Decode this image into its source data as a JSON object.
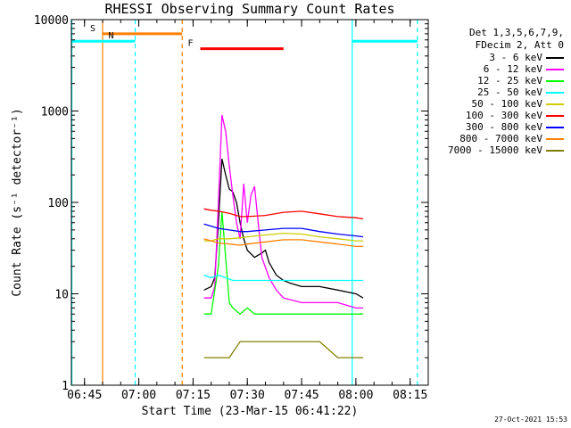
{
  "chart_data": {
    "type": "line",
    "title": "RHESSI Observing Summary Count Rates",
    "xlabel": "Start Time (23-Mar-15 06:41:22)",
    "ylabel": "Count Rate (s⁻¹ detector⁻¹)",
    "y_scale": "log",
    "ylim": [
      1,
      10000
    ],
    "xlim": [
      "06:41:22",
      "08:20:00"
    ],
    "x_ticks": [
      "06:45",
      "07:00",
      "07:15",
      "07:30",
      "07:45",
      "08:00",
      "08:15"
    ],
    "y_ticks": [
      "1",
      "10",
      "100",
      "1000",
      "10000"
    ],
    "legend_header": [
      "Det 1,3,5,6,7,9,",
      "FDecim 2, Att 0"
    ],
    "grid": false,
    "legend_position": "outside-right",
    "series": [
      {
        "name": "3 - 6 keV",
        "color": "#000000",
        "points": [
          [
            "07:18",
            11
          ],
          [
            "07:20",
            12
          ],
          [
            "07:21",
            15
          ],
          [
            "07:22",
            60
          ],
          [
            "07:23",
            300
          ],
          [
            "07:24",
            200
          ],
          [
            "07:25",
            140
          ],
          [
            "07:26",
            130
          ],
          [
            "07:27",
            100
          ],
          [
            "07:28",
            60
          ],
          [
            "07:29",
            40
          ],
          [
            "07:30",
            30
          ],
          [
            "07:32",
            25
          ],
          [
            "07:34",
            28
          ],
          [
            "07:35",
            30
          ],
          [
            "07:36",
            22
          ],
          [
            "07:38",
            16
          ],
          [
            "07:40",
            14
          ],
          [
            "07:42",
            13
          ],
          [
            "07:45",
            12
          ],
          [
            "07:50",
            12
          ],
          [
            "07:55",
            11
          ],
          [
            "08:00",
            10
          ],
          [
            "08:02",
            9
          ]
        ]
      },
      {
        "name": "6 - 12 keV",
        "color": "#ff00ff",
        "points": [
          [
            "07:18",
            9
          ],
          [
            "07:20",
            9
          ],
          [
            "07:21",
            12
          ],
          [
            "07:22",
            100
          ],
          [
            "07:23",
            900
          ],
          [
            "07:24",
            600
          ],
          [
            "07:25",
            250
          ],
          [
            "07:26",
            120
          ],
          [
            "07:27",
            60
          ],
          [
            "07:28",
            40
          ],
          [
            "07:29",
            160
          ],
          [
            "07:30",
            60
          ],
          [
            "07:31",
            120
          ],
          [
            "07:32",
            150
          ],
          [
            "07:33",
            60
          ],
          [
            "07:34",
            25
          ],
          [
            "07:36",
            15
          ],
          [
            "07:38",
            11
          ],
          [
            "07:40",
            9
          ],
          [
            "07:45",
            8
          ],
          [
            "07:50",
            8
          ],
          [
            "07:55",
            8
          ],
          [
            "08:00",
            7
          ],
          [
            "08:02",
            7
          ]
        ]
      },
      {
        "name": "12 - 25 keV",
        "color": "#00ff00",
        "points": [
          [
            "07:18",
            6
          ],
          [
            "07:20",
            6
          ],
          [
            "07:22",
            20
          ],
          [
            "07:23",
            80
          ],
          [
            "07:24",
            25
          ],
          [
            "07:25",
            8
          ],
          [
            "07:26",
            7
          ],
          [
            "07:28",
            6
          ],
          [
            "07:30",
            7
          ],
          [
            "07:32",
            6
          ],
          [
            "07:35",
            6
          ],
          [
            "07:40",
            6
          ],
          [
            "07:45",
            6
          ],
          [
            "07:50",
            6
          ],
          [
            "07:55",
            6
          ],
          [
            "08:00",
            6
          ],
          [
            "08:02",
            6
          ]
        ]
      },
      {
        "name": "25 - 50 keV",
        "color": "#00ffff",
        "points": [
          [
            "07:18",
            16
          ],
          [
            "07:20",
            15
          ],
          [
            "07:22",
            16
          ],
          [
            "07:24",
            15
          ],
          [
            "07:26",
            14
          ],
          [
            "07:28",
            14
          ],
          [
            "07:30",
            14
          ],
          [
            "07:35",
            14
          ],
          [
            "07:40",
            14
          ],
          [
            "07:45",
            14
          ],
          [
            "07:50",
            14
          ],
          [
            "07:55",
            14
          ],
          [
            "08:00",
            14
          ],
          [
            "08:02",
            14
          ]
        ]
      },
      {
        "name": "50 - 100 keV",
        "color": "#cccc00",
        "points": [
          [
            "07:18",
            38
          ],
          [
            "07:20",
            38
          ],
          [
            "07:22",
            40
          ],
          [
            "07:25",
            40
          ],
          [
            "07:28",
            41
          ],
          [
            "07:30",
            42
          ],
          [
            "07:35",
            44
          ],
          [
            "07:40",
            46
          ],
          [
            "07:45",
            45
          ],
          [
            "07:50",
            42
          ],
          [
            "07:55",
            40
          ],
          [
            "08:00",
            38
          ],
          [
            "08:02",
            38
          ]
        ]
      },
      {
        "name": "100 - 300 keV",
        "color": "#ff0000",
        "points": [
          [
            "07:18",
            85
          ],
          [
            "07:20",
            82
          ],
          [
            "07:22",
            80
          ],
          [
            "07:25",
            76
          ],
          [
            "07:28",
            70
          ],
          [
            "07:30",
            70
          ],
          [
            "07:35",
            72
          ],
          [
            "07:40",
            78
          ],
          [
            "07:45",
            80
          ],
          [
            "07:50",
            75
          ],
          [
            "07:55",
            70
          ],
          [
            "08:00",
            68
          ],
          [
            "08:02",
            66
          ]
        ]
      },
      {
        "name": "300 - 800 keV",
        "color": "#0000ff",
        "points": [
          [
            "07:18",
            58
          ],
          [
            "07:20",
            55
          ],
          [
            "07:22",
            52
          ],
          [
            "07:25",
            50
          ],
          [
            "07:28",
            48
          ],
          [
            "07:30",
            48
          ],
          [
            "07:35",
            50
          ],
          [
            "07:40",
            52
          ],
          [
            "07:45",
            52
          ],
          [
            "07:50",
            48
          ],
          [
            "07:55",
            45
          ],
          [
            "08:00",
            43
          ],
          [
            "08:02",
            42
          ]
        ]
      },
      {
        "name": "800 - 7000 keV",
        "color": "#ff8000",
        "points": [
          [
            "07:18",
            40
          ],
          [
            "07:20",
            38
          ],
          [
            "07:22",
            36
          ],
          [
            "07:25",
            35
          ],
          [
            "07:28",
            34
          ],
          [
            "07:30",
            35
          ],
          [
            "07:35",
            37
          ],
          [
            "07:40",
            39
          ],
          [
            "07:45",
            39
          ],
          [
            "07:50",
            37
          ],
          [
            "07:55",
            35
          ],
          [
            "08:00",
            33
          ],
          [
            "08:02",
            33
          ]
        ]
      },
      {
        "name": "7000 - 15000 keV",
        "color": "#808000",
        "points": [
          [
            "07:18",
            2
          ],
          [
            "07:20",
            2
          ],
          [
            "07:22",
            2
          ],
          [
            "07:25",
            2
          ],
          [
            "07:28",
            3
          ],
          [
            "07:30",
            3
          ],
          [
            "07:35",
            3
          ],
          [
            "07:40",
            3
          ],
          [
            "07:45",
            3
          ],
          [
            "07:50",
            3
          ],
          [
            "07:55",
            2
          ],
          [
            "08:00",
            2
          ],
          [
            "08:02",
            2
          ]
        ]
      }
    ],
    "annotations": [
      {
        "label": "S",
        "color": "#ff8000",
        "start": "06:50",
        "end": "07:12",
        "y": 7000,
        "kind": "bar"
      },
      {
        "label": "N",
        "color": "#00ffff",
        "start": "06:41:22",
        "end": "06:59",
        "y": 5800,
        "kind": "bar"
      },
      {
        "label": "",
        "color": "#00ffff",
        "start": "07:59",
        "end": "08:17",
        "y": 5800,
        "kind": "bar"
      },
      {
        "label": "F",
        "color": "#ff0000",
        "start": "07:17",
        "end": "07:40",
        "y": 4800,
        "kind": "bar"
      }
    ],
    "vlines": [
      {
        "t": "06:41:30",
        "color": "#00ffff",
        "style": "solid"
      },
      {
        "t": "06:50",
        "color": "#ff8000",
        "style": "solid"
      },
      {
        "t": "06:59",
        "color": "#00ffff",
        "style": "dashed"
      },
      {
        "t": "07:12",
        "color": "#ff8000",
        "style": "dashed"
      },
      {
        "t": "07:59",
        "color": "#00ffff",
        "style": "solid"
      },
      {
        "t": "08:17",
        "color": "#00ffff",
        "style": "dashed"
      }
    ],
    "footer_date": "27-Oct-2021 15:53"
  }
}
